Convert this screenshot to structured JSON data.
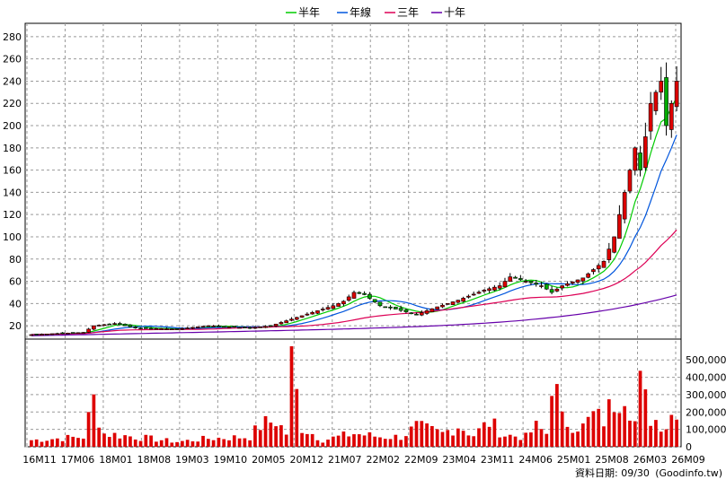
{
  "chart_data": {
    "type": "candlestick",
    "legend": [
      {
        "label": "半年",
        "color": "#00cc00"
      },
      {
        "label": "年線",
        "color": "#0055dd"
      },
      {
        "label": "三年",
        "color": "#dd0055"
      },
      {
        "label": "十年",
        "color": "#6600aa"
      }
    ],
    "legend_position": "top-center",
    "price_axis": {
      "ticks": [
        20,
        40,
        60,
        80,
        100,
        120,
        140,
        160,
        180,
        200,
        220,
        240,
        260,
        280
      ],
      "range": [
        8,
        292
      ]
    },
    "volume_axis": {
      "ticks": [
        0,
        100000,
        200000,
        300000,
        400000,
        500000
      ],
      "tick_labels": [
        "0",
        "100,000",
        "200,000",
        "300,000",
        "400,000",
        "500,000"
      ],
      "range": [
        0,
        620000
      ]
    },
    "x_tick_labels": [
      "16M11",
      "17M06",
      "18M01",
      "18M08",
      "19M03",
      "19M10",
      "20M05",
      "20M12",
      "21M07",
      "22M02",
      "22M09",
      "23M04",
      "23M11",
      "24M06",
      "25M01",
      "25M08",
      "26M03",
      "26M09"
    ],
    "grid": true,
    "up_color": "#dd0000",
    "down_color": "#00aa00",
    "volume_color": "#dd0000",
    "footer": "資料日期: 09/30",
    "footer_credit": "(Goodinfo.tw)",
    "price_anchors": [
      [
        0,
        12
      ],
      [
        10,
        14
      ],
      [
        12,
        20
      ],
      [
        16,
        22
      ],
      [
        20,
        18
      ],
      [
        28,
        17
      ],
      [
        34,
        20
      ],
      [
        42,
        18
      ],
      [
        46,
        20
      ],
      [
        50,
        26
      ],
      [
        54,
        32
      ],
      [
        58,
        38
      ],
      [
        60,
        42
      ],
      [
        62,
        50
      ],
      [
        64,
        48
      ],
      [
        67,
        38
      ],
      [
        70,
        35
      ],
      [
        74,
        30
      ],
      [
        78,
        37
      ],
      [
        82,
        43
      ],
      [
        87,
        52
      ],
      [
        90,
        56
      ],
      [
        92,
        64
      ],
      [
        95,
        60
      ],
      [
        98,
        56
      ],
      [
        100,
        50
      ],
      [
        102,
        56
      ],
      [
        106,
        63
      ],
      [
        110,
        78
      ],
      [
        112,
        100
      ],
      [
        114,
        140
      ],
      [
        116,
        180
      ],
      [
        117,
        160
      ],
      [
        119,
        220
      ],
      [
        121,
        240
      ],
      [
        122,
        200
      ],
      [
        123,
        220
      ],
      [
        124,
        240
      ]
    ],
    "volume_anchors": [
      [
        0,
        40000
      ],
      [
        10,
        60000
      ],
      [
        12,
        280000
      ],
      [
        14,
        80000
      ],
      [
        20,
        60000
      ],
      [
        28,
        30000
      ],
      [
        34,
        50000
      ],
      [
        42,
        60000
      ],
      [
        44,
        130000
      ],
      [
        47,
        160000
      ],
      [
        49,
        80000
      ],
      [
        50,
        500000
      ],
      [
        52,
        120000
      ],
      [
        56,
        40000
      ],
      [
        62,
        80000
      ],
      [
        67,
        60000
      ],
      [
        71,
        60000
      ],
      [
        74,
        120000
      ],
      [
        79,
        80000
      ],
      [
        82,
        130000
      ],
      [
        85,
        70000
      ],
      [
        88,
        150000
      ],
      [
        91,
        70000
      ],
      [
        95,
        60000
      ],
      [
        97,
        120000
      ],
      [
        99,
        80000
      ],
      [
        100,
        450000
      ],
      [
        102,
        160000
      ],
      [
        106,
        120000
      ],
      [
        108,
        190000
      ],
      [
        110,
        160000
      ],
      [
        112,
        290000
      ],
      [
        114,
        380000
      ],
      [
        116,
        150000
      ],
      [
        117,
        360000
      ],
      [
        119,
        180000
      ],
      [
        122,
        130000
      ],
      [
        124,
        260000
      ]
    ],
    "n_bars": 125
  }
}
